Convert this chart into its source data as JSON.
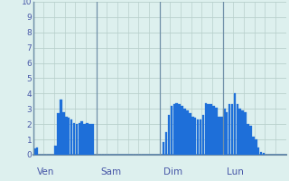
{
  "background_color": "#ddf0ee",
  "bar_color": "#1e6fd9",
  "grid_color": "#b8d0cc",
  "axis_line_color": "#7090a8",
  "text_color": "#4858a8",
  "ylim": [
    0,
    10
  ],
  "yticks": [
    0,
    1,
    2,
    3,
    4,
    5,
    6,
    7,
    8,
    9,
    10
  ],
  "day_labels": [
    "Ven",
    "Sam",
    "Dim",
    "Lun"
  ],
  "day_bar_starts": [
    0,
    24,
    48,
    72
  ],
  "n_bars": 96,
  "values": [
    0.4,
    0.5,
    0.0,
    0.0,
    0.0,
    0.0,
    0.0,
    0.0,
    0.6,
    2.7,
    3.6,
    2.8,
    2.5,
    2.4,
    2.3,
    2.1,
    2.0,
    2.1,
    2.2,
    2.0,
    2.1,
    2.0,
    2.0,
    0.0,
    0.0,
    0.0,
    0.0,
    0.0,
    0.0,
    0.0,
    0.0,
    0.0,
    0.0,
    0.0,
    0.0,
    0.0,
    0.0,
    0.0,
    0.0,
    0.0,
    0.0,
    0.0,
    0.0,
    0.0,
    0.0,
    0.0,
    0.0,
    0.0,
    0.0,
    0.8,
    1.5,
    2.6,
    3.2,
    3.3,
    3.4,
    3.3,
    3.2,
    3.0,
    2.9,
    2.7,
    2.5,
    2.4,
    2.3,
    2.3,
    2.6,
    3.4,
    3.3,
    3.3,
    3.2,
    3.1,
    2.5,
    2.5,
    3.0,
    2.8,
    3.3,
    3.3,
    4.0,
    3.3,
    3.0,
    2.9,
    2.8,
    2.0,
    1.9,
    1.2,
    1.0,
    0.5,
    0.2,
    0.1,
    0.0,
    0.0,
    0.0,
    0.0,
    0.0,
    0.0,
    0.0,
    0.0
  ]
}
